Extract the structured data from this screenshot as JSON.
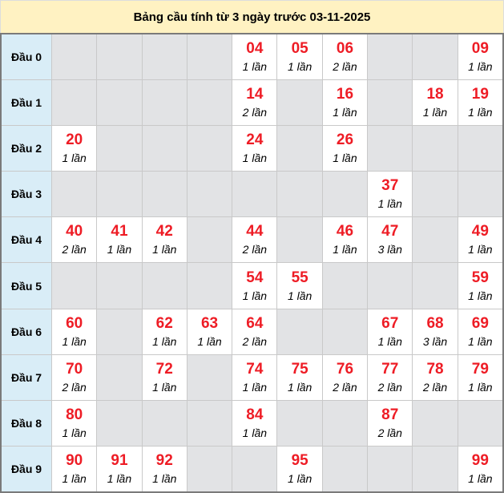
{
  "title": "Bảng cầu tính từ 3 ngày trước 03-11-2025",
  "colors": {
    "number": "#ee1c25",
    "header_bg": "#fff2c2",
    "row_label_bg": "#d9edf7",
    "empty_cell": "#e2e3e5"
  },
  "rows": [
    {
      "label": "Đầu 0",
      "cells": [
        null,
        null,
        null,
        null,
        {
          "num": "04",
          "count": "1 lần"
        },
        {
          "num": "05",
          "count": "1 lần"
        },
        {
          "num": "06",
          "count": "2 lần"
        },
        null,
        null,
        {
          "num": "09",
          "count": "1 lần"
        }
      ]
    },
    {
      "label": "Đầu 1",
      "cells": [
        null,
        null,
        null,
        null,
        {
          "num": "14",
          "count": "2 lần"
        },
        null,
        {
          "num": "16",
          "count": "1 lần"
        },
        null,
        {
          "num": "18",
          "count": "1 lần"
        },
        {
          "num": "19",
          "count": "1 lần"
        }
      ]
    },
    {
      "label": "Đầu 2",
      "cells": [
        {
          "num": "20",
          "count": "1 lần"
        },
        null,
        null,
        null,
        {
          "num": "24",
          "count": "1 lần"
        },
        null,
        {
          "num": "26",
          "count": "1 lần"
        },
        null,
        null,
        null
      ]
    },
    {
      "label": "Đầu 3",
      "cells": [
        null,
        null,
        null,
        null,
        null,
        null,
        null,
        {
          "num": "37",
          "count": "1 lần"
        },
        null,
        null
      ]
    },
    {
      "label": "Đầu 4",
      "cells": [
        {
          "num": "40",
          "count": "2 lần"
        },
        {
          "num": "41",
          "count": "1 lần"
        },
        {
          "num": "42",
          "count": "1 lần"
        },
        null,
        {
          "num": "44",
          "count": "2 lần"
        },
        null,
        {
          "num": "46",
          "count": "1 lần"
        },
        {
          "num": "47",
          "count": "3 lần"
        },
        null,
        {
          "num": "49",
          "count": "1 lần"
        }
      ]
    },
    {
      "label": "Đầu 5",
      "cells": [
        null,
        null,
        null,
        null,
        {
          "num": "54",
          "count": "1 lần"
        },
        {
          "num": "55",
          "count": "1 lần"
        },
        null,
        null,
        null,
        {
          "num": "59",
          "count": "1 lần"
        }
      ]
    },
    {
      "label": "Đầu 6",
      "cells": [
        {
          "num": "60",
          "count": "1 lần"
        },
        null,
        {
          "num": "62",
          "count": "1 lần"
        },
        {
          "num": "63",
          "count": "1 lần"
        },
        {
          "num": "64",
          "count": "2 lần"
        },
        null,
        null,
        {
          "num": "67",
          "count": "1 lần"
        },
        {
          "num": "68",
          "count": "3 lần"
        },
        {
          "num": "69",
          "count": "1 lần"
        }
      ]
    },
    {
      "label": "Đầu 7",
      "cells": [
        {
          "num": "70",
          "count": "2 lần"
        },
        null,
        {
          "num": "72",
          "count": "1 lần"
        },
        null,
        {
          "num": "74",
          "count": "1 lần"
        },
        {
          "num": "75",
          "count": "1 lần"
        },
        {
          "num": "76",
          "count": "2 lần"
        },
        {
          "num": "77",
          "count": "2 lần"
        },
        {
          "num": "78",
          "count": "2 lần"
        },
        {
          "num": "79",
          "count": "1 lần"
        }
      ]
    },
    {
      "label": "Đầu 8",
      "cells": [
        {
          "num": "80",
          "count": "1 lần"
        },
        null,
        null,
        null,
        {
          "num": "84",
          "count": "1 lần"
        },
        null,
        null,
        {
          "num": "87",
          "count": "2 lần"
        },
        null,
        null
      ]
    },
    {
      "label": "Đầu 9",
      "cells": [
        {
          "num": "90",
          "count": "1 lần"
        },
        {
          "num": "91",
          "count": "1 lần"
        },
        {
          "num": "92",
          "count": "1 lần"
        },
        null,
        null,
        {
          "num": "95",
          "count": "1 lần"
        },
        null,
        null,
        null,
        {
          "num": "99",
          "count": "1 lần"
        }
      ]
    }
  ]
}
